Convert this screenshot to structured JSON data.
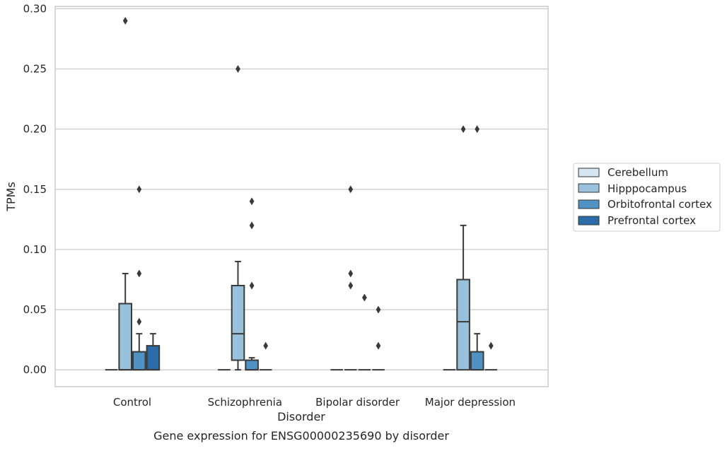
{
  "chart_data": {
    "type": "boxplot",
    "xlabel": "Disorder",
    "ylabel": "TPMs",
    "caption": "Gene expression for ENSG00000235690 by disorder",
    "ylim": [
      -0.014,
      0.302
    ],
    "yticks": [
      "0.00",
      "0.05",
      "0.10",
      "0.15",
      "0.20",
      "0.25",
      "0.30"
    ],
    "grid": "horizontal",
    "legend_placement": "right",
    "categories": [
      "Control",
      "Schizophrenia",
      "Bipolar disorder",
      "Major depression"
    ],
    "series": [
      {
        "name": "Cerebellum",
        "color": "#d6e5f2"
      },
      {
        "name": "Hipppocampus",
        "color": "#99c1dc"
      },
      {
        "name": "Orbitofrontal cortex",
        "color": "#4f92c3"
      },
      {
        "name": "Prefrontal cortex",
        "color": "#2b6ba8"
      }
    ],
    "boxes": [
      {
        "category": 0,
        "series": 0,
        "q1": 0,
        "median": 0,
        "q3": 0,
        "whislo": 0,
        "whishi": 0,
        "fliers": []
      },
      {
        "category": 0,
        "series": 1,
        "q1": 0,
        "median": 0,
        "q3": 0.055,
        "whislo": 0,
        "whishi": 0.08,
        "fliers": [
          0.29
        ]
      },
      {
        "category": 0,
        "series": 2,
        "q1": 0,
        "median": 0,
        "q3": 0.015,
        "whislo": 0,
        "whishi": 0.03,
        "fliers": [
          0.04,
          0.08,
          0.15
        ]
      },
      {
        "category": 0,
        "series": 3,
        "q1": 0,
        "median": 0,
        "q3": 0.02,
        "whislo": 0,
        "whishi": 0.03,
        "fliers": []
      },
      {
        "category": 1,
        "series": 0,
        "q1": 0,
        "median": 0,
        "q3": 0,
        "whislo": 0,
        "whishi": 0,
        "fliers": []
      },
      {
        "category": 1,
        "series": 1,
        "q1": 0.008,
        "median": 0.03,
        "q3": 0.07,
        "whislo": 0,
        "whishi": 0.09,
        "fliers": [
          0.25
        ]
      },
      {
        "category": 1,
        "series": 2,
        "q1": 0,
        "median": 0,
        "q3": 0.008,
        "whislo": 0,
        "whishi": 0.01,
        "fliers": [
          0.07,
          0.12,
          0.14
        ]
      },
      {
        "category": 1,
        "series": 3,
        "q1": 0,
        "median": 0,
        "q3": 0,
        "whislo": 0,
        "whishi": 0,
        "fliers": [
          0.02
        ]
      },
      {
        "category": 2,
        "series": 0,
        "q1": 0,
        "median": 0,
        "q3": 0,
        "whislo": 0,
        "whishi": 0,
        "fliers": []
      },
      {
        "category": 2,
        "series": 1,
        "q1": 0,
        "median": 0,
        "q3": 0,
        "whislo": 0,
        "whishi": 0,
        "fliers": [
          0.07,
          0.08,
          0.15
        ]
      },
      {
        "category": 2,
        "series": 2,
        "q1": 0,
        "median": 0,
        "q3": 0,
        "whislo": 0,
        "whishi": 0,
        "fliers": [
          0.06
        ]
      },
      {
        "category": 2,
        "series": 3,
        "q1": 0,
        "median": 0,
        "q3": 0,
        "whislo": 0,
        "whishi": 0,
        "fliers": [
          0.02,
          0.05
        ]
      },
      {
        "category": 3,
        "series": 0,
        "q1": 0,
        "median": 0,
        "q3": 0,
        "whislo": 0,
        "whishi": 0,
        "fliers": []
      },
      {
        "category": 3,
        "series": 1,
        "q1": 0,
        "median": 0.04,
        "q3": 0.075,
        "whislo": 0,
        "whishi": 0.12,
        "fliers": [
          0.2
        ]
      },
      {
        "category": 3,
        "series": 2,
        "q1": 0,
        "median": 0,
        "q3": 0.015,
        "whislo": 0,
        "whishi": 0.03,
        "fliers": [
          0.2
        ]
      },
      {
        "category": 3,
        "series": 3,
        "q1": 0,
        "median": 0,
        "q3": 0,
        "whislo": 0,
        "whishi": 0,
        "fliers": [
          0.02
        ]
      }
    ]
  }
}
